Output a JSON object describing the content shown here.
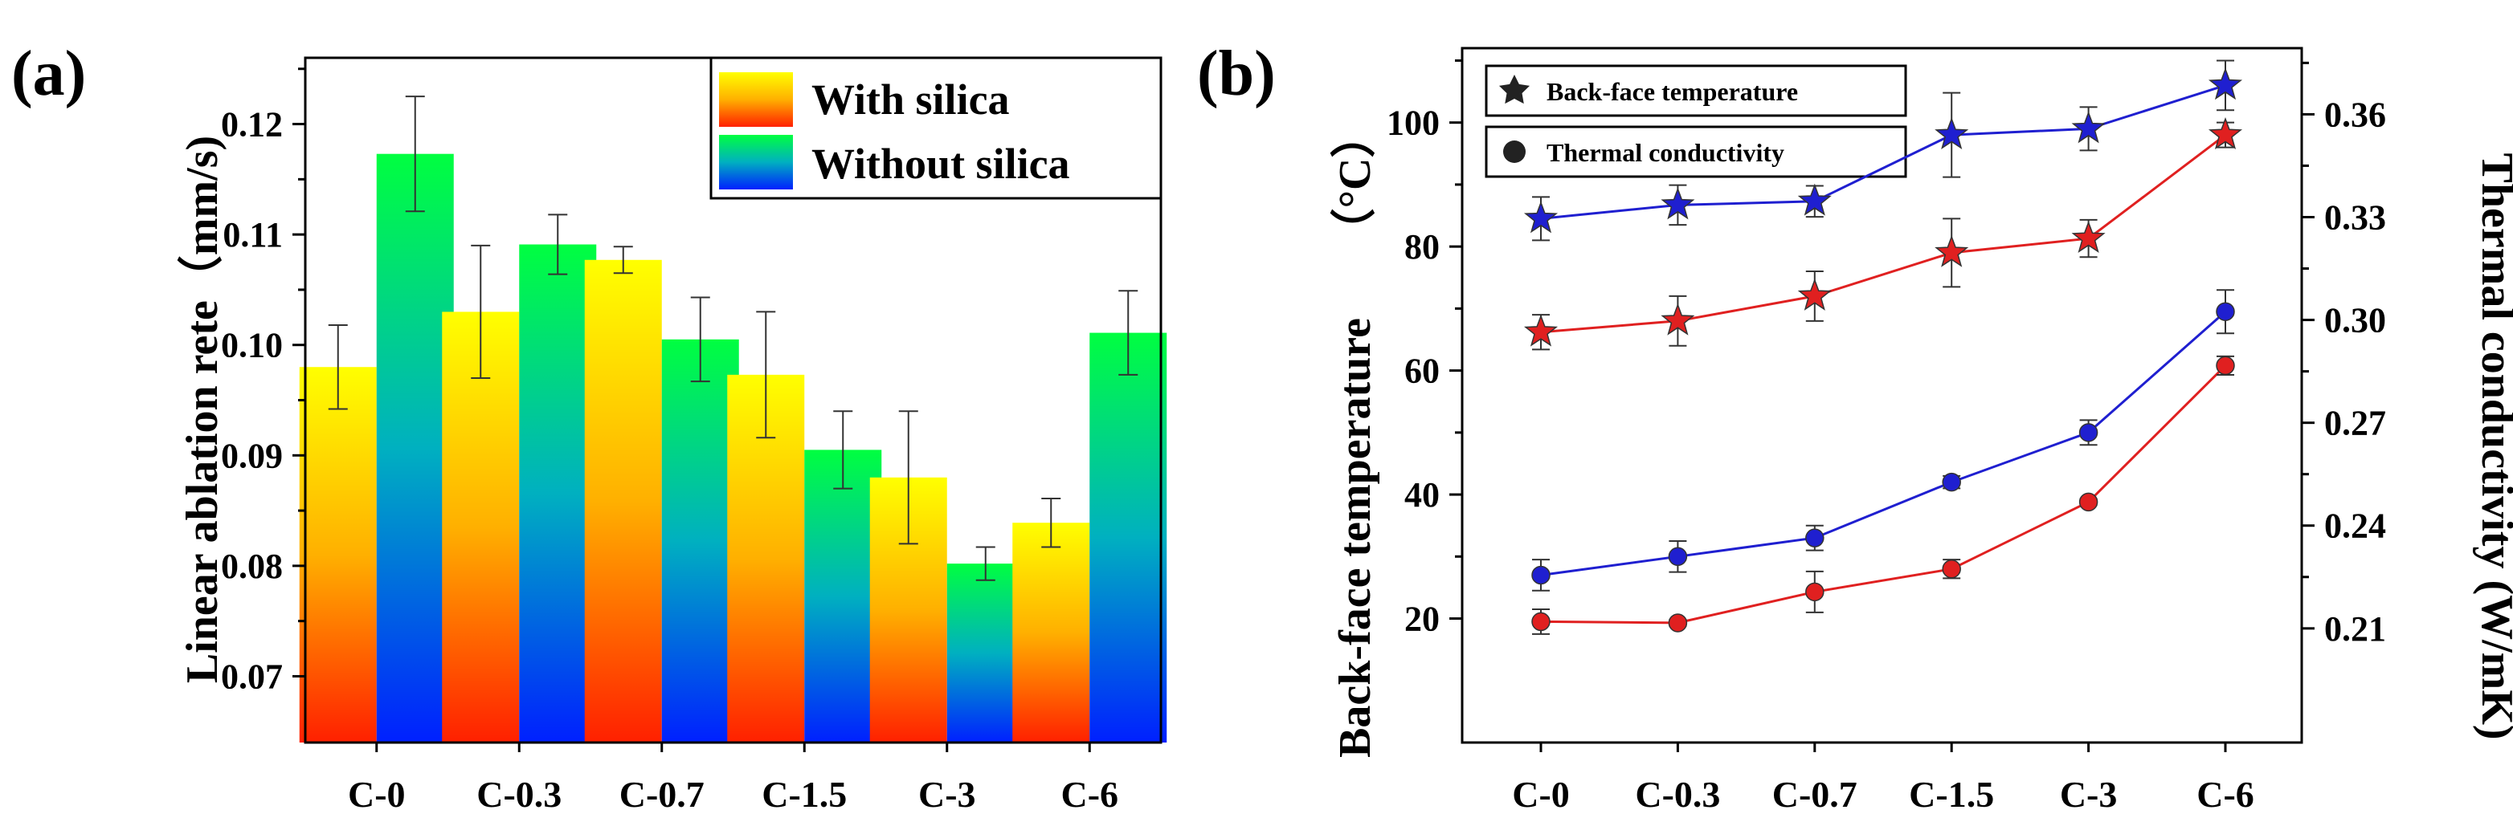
{
  "chart_data": [
    {
      "panel_label": "(a)",
      "type": "bar",
      "categories": [
        "C-0",
        "C-0.3",
        "C-0.7",
        "C-1.5",
        "C-3",
        "C-6"
      ],
      "ylabel": "Linear ablation rete（mm/s)",
      "xlabel": "",
      "ylim": [
        0.064,
        0.126
      ],
      "yticks": [
        "0.07",
        "0.08",
        "0.09",
        "0.10",
        "0.11",
        "0.12"
      ],
      "series": [
        {
          "name": "With silica",
          "values": [
            0.098,
            0.103,
            0.1077,
            0.0973,
            0.088,
            0.0839
          ],
          "errors": [
            0.0038,
            0.006,
            0.0012,
            0.0057,
            0.006,
            0.0022
          ],
          "gradient": [
            "#ffff00",
            "#ff2000"
          ]
        },
        {
          "name": "Without silica",
          "values": [
            0.1173,
            0.1091,
            0.1005,
            0.0905,
            0.0802,
            0.1011
          ],
          "errors": [
            0.0052,
            0.0027,
            0.0038,
            0.0035,
            0.0015,
            0.0038
          ],
          "gradient": [
            "#00ff40",
            "#0020ff"
          ]
        }
      ],
      "legend_position": "top-right",
      "grid": false
    },
    {
      "panel_label": "(b)",
      "type": "line",
      "categories": [
        "C-0",
        "C-0.3",
        "C-0.7",
        "C-1.5",
        "C-3",
        "C-6"
      ],
      "ylabel_left": "Back-face temperature",
      "ylabel_left_unit": "（°C）",
      "ylabel_right": "Thermal conductivity (W/mK)",
      "ylim_left": [
        0,
        112
      ],
      "yticks_left": [
        "20",
        "40",
        "60",
        "80",
        "100"
      ],
      "ylim_right": [
        0.1767,
        0.3793
      ],
      "yticks_right": [
        "0.21",
        "0.24",
        "0.27",
        "0.30",
        "0.33",
        "0.36"
      ],
      "legend": [
        {
          "name": "Back-face temperature",
          "marker": "star"
        },
        {
          "name": "Thermal conductivity",
          "marker": "circle"
        }
      ],
      "series": [
        {
          "axis": "left",
          "marker": "star",
          "color": "#1f1fd0",
          "values": [
            84.5,
            86.7,
            87.3,
            98.0,
            99.0,
            106.0
          ],
          "errors": [
            3.5,
            3.2,
            2.5,
            6.8,
            3.5,
            4.0
          ]
        },
        {
          "axis": "left",
          "marker": "star",
          "color": "#e02020",
          "values": [
            66.2,
            68.0,
            72.0,
            79.0,
            81.3,
            98.0
          ],
          "errors": [
            2.8,
            4.0,
            4.0,
            5.5,
            3.0,
            2.0
          ]
        },
        {
          "axis": "left",
          "marker": "circle",
          "color": "#1f1fd0",
          "values": [
            27.0,
            30.0,
            33.0,
            42.0,
            50.0,
            69.5
          ],
          "errors": [
            2.5,
            2.5,
            2.0,
            1.0,
            2.0,
            3.5
          ]
        },
        {
          "axis": "left",
          "marker": "circle",
          "color": "#e02020",
          "values": [
            19.5,
            19.3,
            24.3,
            28.0,
            38.8,
            60.8
          ],
          "errors": [
            2.0,
            0.5,
            3.3,
            1.5,
            0.5,
            1.5
          ]
        }
      ],
      "legend_position": "top-left",
      "grid": false
    }
  ]
}
